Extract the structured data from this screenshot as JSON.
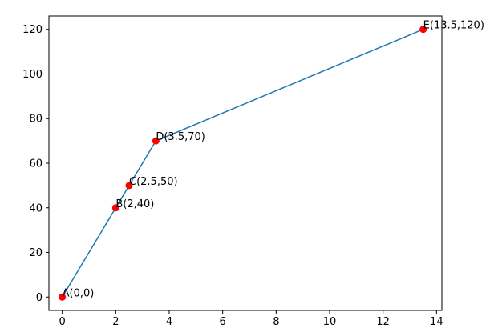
{
  "chart_data": {
    "type": "line",
    "x": [
      0,
      2,
      2.5,
      3.5,
      13.5
    ],
    "series": [
      {
        "color": "#1f77b4",
        "marker_color": "#ff0000",
        "values": [
          0,
          40,
          50,
          70,
          120
        ]
      }
    ],
    "point_labels": [
      "A(0,0)",
      "B(2,40)",
      "C(2.5,50)",
      "D(3.5,70)",
      "E(13.5,120)"
    ],
    "xlim": [
      -0.5,
      14.2
    ],
    "ylim": [
      -6,
      126
    ],
    "xticks": [
      0,
      2,
      4,
      6,
      8,
      10,
      12,
      14
    ],
    "yticks": [
      0,
      20,
      40,
      60,
      80,
      100,
      120
    ],
    "grid": false
  }
}
